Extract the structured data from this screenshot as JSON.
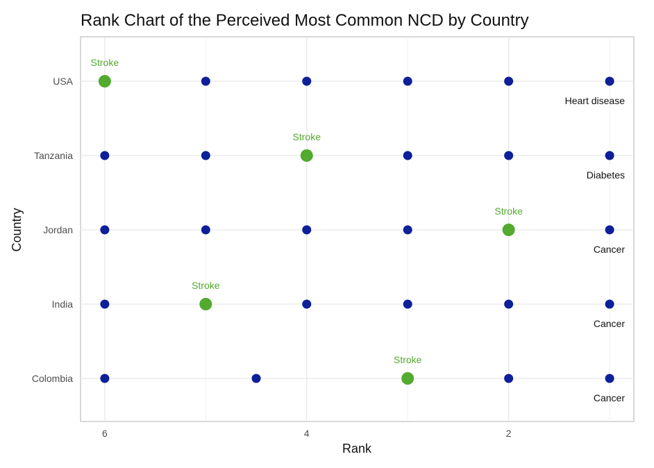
{
  "chart_data": {
    "type": "scatter",
    "title": "Rank Chart of the Perceived Most Common NCD by Country",
    "xlabel": "Rank",
    "ylabel": "Country",
    "x_reversed": true,
    "xlim": [
      6.24,
      0.76
    ],
    "x_ticks": [
      6,
      4,
      2
    ],
    "categories": [
      "Colombia",
      "India",
      "Jordan",
      "Tanzania",
      "USA"
    ],
    "grid": true,
    "colors": {
      "point": "#0d1f99",
      "highlight": "#52aa2e",
      "panel_border": "#bdbdbd",
      "grid": "#e6e6e6",
      "label_dark": "#111111"
    },
    "points": [
      {
        "country": "USA",
        "rank": 6,
        "highlight": true,
        "label": "Stroke"
      },
      {
        "country": "USA",
        "rank": 5,
        "highlight": false
      },
      {
        "country": "USA",
        "rank": 4,
        "highlight": false
      },
      {
        "country": "USA",
        "rank": 3,
        "highlight": false
      },
      {
        "country": "USA",
        "rank": 2,
        "highlight": false
      },
      {
        "country": "USA",
        "rank": 1,
        "highlight": false,
        "label": "Heart disease"
      },
      {
        "country": "Tanzania",
        "rank": 6,
        "highlight": false
      },
      {
        "country": "Tanzania",
        "rank": 5,
        "highlight": false
      },
      {
        "country": "Tanzania",
        "rank": 4,
        "highlight": true,
        "label": "Stroke"
      },
      {
        "country": "Tanzania",
        "rank": 3,
        "highlight": false
      },
      {
        "country": "Tanzania",
        "rank": 2,
        "highlight": false
      },
      {
        "country": "Tanzania",
        "rank": 1,
        "highlight": false,
        "label": "Diabetes"
      },
      {
        "country": "Jordan",
        "rank": 6,
        "highlight": false
      },
      {
        "country": "Jordan",
        "rank": 5,
        "highlight": false
      },
      {
        "country": "Jordan",
        "rank": 4,
        "highlight": false
      },
      {
        "country": "Jordan",
        "rank": 3,
        "highlight": false
      },
      {
        "country": "Jordan",
        "rank": 2,
        "highlight": true,
        "label": "Stroke"
      },
      {
        "country": "Jordan",
        "rank": 1,
        "highlight": false,
        "label": "Cancer"
      },
      {
        "country": "India",
        "rank": 6,
        "highlight": false
      },
      {
        "country": "India",
        "rank": 5,
        "highlight": true,
        "label": "Stroke"
      },
      {
        "country": "India",
        "rank": 4,
        "highlight": false
      },
      {
        "country": "India",
        "rank": 3,
        "highlight": false
      },
      {
        "country": "India",
        "rank": 2,
        "highlight": false
      },
      {
        "country": "India",
        "rank": 1,
        "highlight": false,
        "label": "Cancer"
      },
      {
        "country": "Colombia",
        "rank": 6,
        "highlight": false
      },
      {
        "country": "Colombia",
        "rank": 4.5,
        "highlight": false
      },
      {
        "country": "Colombia",
        "rank": 3,
        "highlight": true,
        "label": "Stroke"
      },
      {
        "country": "Colombia",
        "rank": 2,
        "highlight": false
      },
      {
        "country": "Colombia",
        "rank": 1,
        "highlight": false,
        "label": "Cancer"
      }
    ]
  }
}
